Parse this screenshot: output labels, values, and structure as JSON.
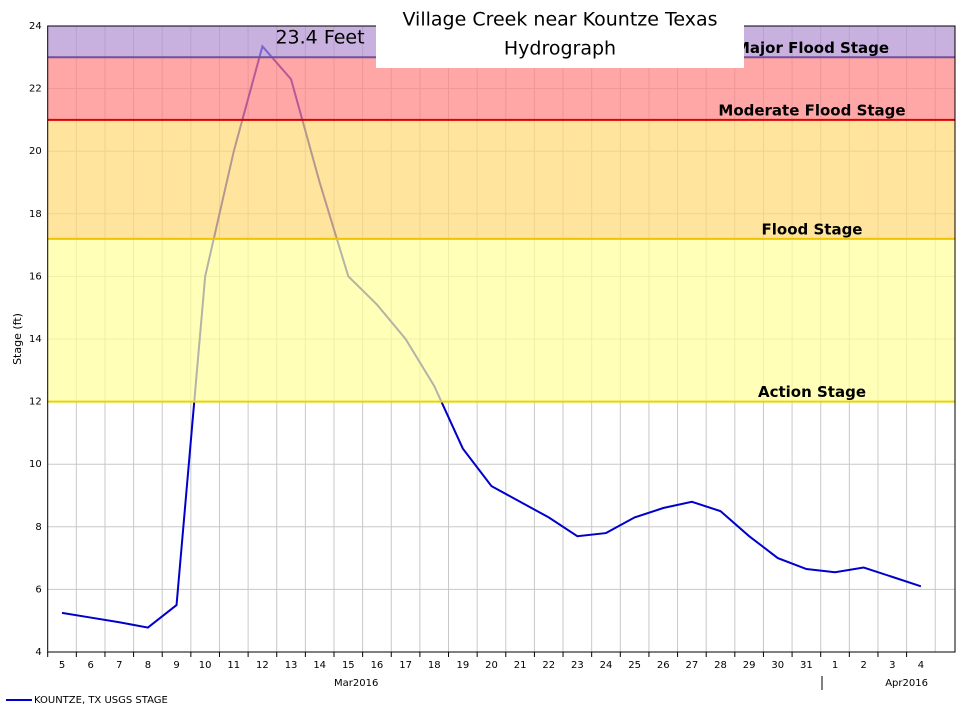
{
  "chart_data": {
    "type": "line",
    "title": [
      "Village Creek near Kountze Texas",
      "Hydrograph"
    ],
    "y_label": "Stage (ft)",
    "annotation": "23.4 Feet",
    "categories": [
      "5",
      "6",
      "7",
      "8",
      "9",
      "10",
      "11",
      "12",
      "13",
      "14",
      "15",
      "16",
      "17",
      "18",
      "19",
      "20",
      "21",
      "22",
      "23",
      "24",
      "25",
      "26",
      "27",
      "28",
      "29",
      "30",
      "31",
      "1",
      "2",
      "3",
      "4"
    ],
    "months": [
      {
        "label": "Mar2016",
        "at": 10
      },
      {
        "label": "Apr2016",
        "at": 30
      }
    ],
    "series": [
      {
        "name": "KOUNTZE, TX USGS STAGE",
        "color": "#0000cc",
        "values": [
          5.25,
          5.1,
          4.95,
          4.78,
          5.5,
          16.0,
          20.0,
          23.35,
          22.3,
          19.0,
          16.0,
          15.1,
          14.0,
          12.5,
          10.5,
          9.3,
          8.8,
          8.3,
          7.7,
          7.8,
          8.3,
          8.6,
          8.8,
          8.5,
          7.7,
          7.0,
          6.65,
          6.55,
          6.7,
          6.4,
          6.1
        ]
      }
    ],
    "stages": [
      {
        "name": "Action Stage",
        "value": 12,
        "color": "#ffff99",
        "line": "#e6d600"
      },
      {
        "name": "Flood Stage",
        "value": 17.2,
        "color": "#ffd873",
        "line": "#f0c400"
      },
      {
        "name": "Moderate Flood Stage",
        "value": 21,
        "color": "#ff8080",
        "line": "#dd0000"
      },
      {
        "name": "Major Flood Stage",
        "value": 23,
        "color": "#b090d0",
        "line": "#7050a0"
      }
    ],
    "ylim": [
      4,
      24
    ],
    "yticks": [
      4,
      6,
      8,
      10,
      12,
      14,
      16,
      18,
      20,
      22,
      24
    ],
    "grid": true
  }
}
